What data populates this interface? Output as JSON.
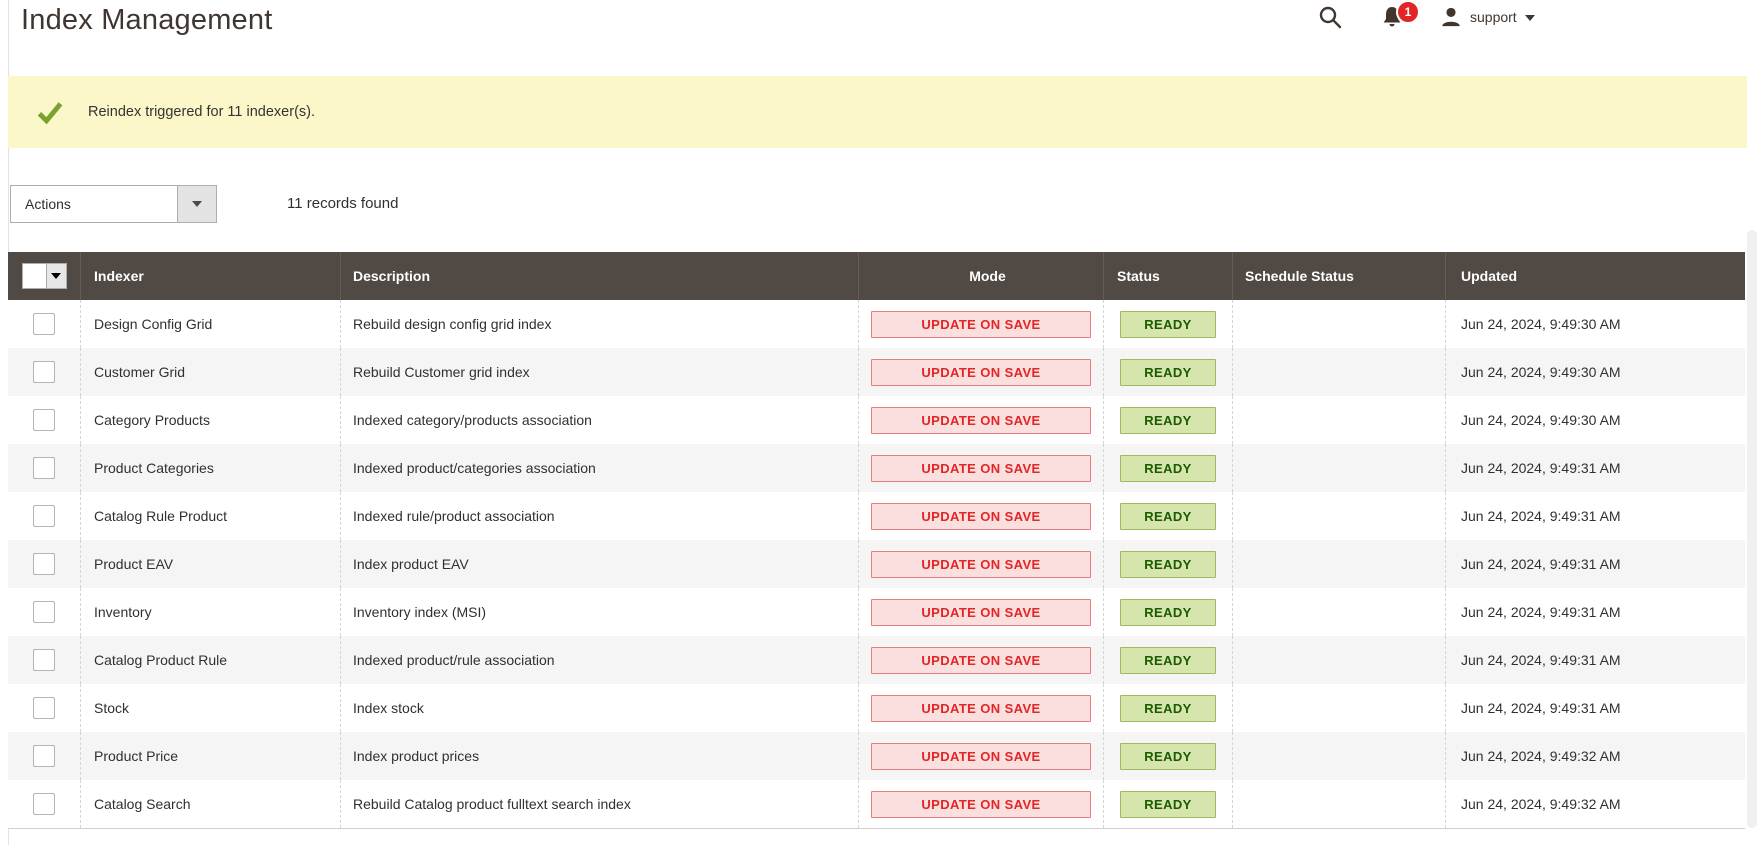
{
  "page": {
    "title": "Index Management"
  },
  "header": {
    "search_icon": "search-icon",
    "notification_icon": "bell-icon",
    "notification_count": "1",
    "user_icon": "person-icon",
    "username": "support"
  },
  "message": {
    "icon": "success-check-icon",
    "text": "Reindex triggered for 11 indexer(s)."
  },
  "toolbar": {
    "actions_label": "Actions",
    "records_text": "11 records found"
  },
  "table": {
    "columns": [
      "Indexer",
      "Description",
      "Mode",
      "Status",
      "Schedule Status",
      "Updated"
    ],
    "rows": [
      {
        "indexer": "Design Config Grid",
        "description": "Rebuild design config grid index",
        "mode": "UPDATE ON SAVE",
        "status": "READY",
        "schedule_status": "",
        "updated": "Jun 24, 2024, 9:49:30 AM"
      },
      {
        "indexer": "Customer Grid",
        "description": "Rebuild Customer grid index",
        "mode": "UPDATE ON SAVE",
        "status": "READY",
        "schedule_status": "",
        "updated": "Jun 24, 2024, 9:49:30 AM"
      },
      {
        "indexer": "Category Products",
        "description": "Indexed category/products association",
        "mode": "UPDATE ON SAVE",
        "status": "READY",
        "schedule_status": "",
        "updated": "Jun 24, 2024, 9:49:30 AM"
      },
      {
        "indexer": "Product Categories",
        "description": "Indexed product/categories association",
        "mode": "UPDATE ON SAVE",
        "status": "READY",
        "schedule_status": "",
        "updated": "Jun 24, 2024, 9:49:31 AM"
      },
      {
        "indexer": "Catalog Rule Product",
        "description": "Indexed rule/product association",
        "mode": "UPDATE ON SAVE",
        "status": "READY",
        "schedule_status": "",
        "updated": "Jun 24, 2024, 9:49:31 AM"
      },
      {
        "indexer": "Product EAV",
        "description": "Index product EAV",
        "mode": "UPDATE ON SAVE",
        "status": "READY",
        "schedule_status": "",
        "updated": "Jun 24, 2024, 9:49:31 AM"
      },
      {
        "indexer": "Inventory",
        "description": "Inventory index (MSI)",
        "mode": "UPDATE ON SAVE",
        "status": "READY",
        "schedule_status": "",
        "updated": "Jun 24, 2024, 9:49:31 AM"
      },
      {
        "indexer": "Catalog Product Rule",
        "description": "Indexed product/rule association",
        "mode": "UPDATE ON SAVE",
        "status": "READY",
        "schedule_status": "",
        "updated": "Jun 24, 2024, 9:49:31 AM"
      },
      {
        "indexer": "Stock",
        "description": "Index stock",
        "mode": "UPDATE ON SAVE",
        "status": "READY",
        "schedule_status": "",
        "updated": "Jun 24, 2024, 9:49:31 AM"
      },
      {
        "indexer": "Product Price",
        "description": "Index product prices",
        "mode": "UPDATE ON SAVE",
        "status": "READY",
        "schedule_status": "",
        "updated": "Jun 24, 2024, 9:49:32 AM"
      },
      {
        "indexer": "Catalog Search",
        "description": "Rebuild Catalog product fulltext search index",
        "mode": "UPDATE ON SAVE",
        "status": "READY",
        "schedule_status": "",
        "updated": "Jun 24, 2024, 9:49:32 AM"
      }
    ]
  },
  "colors": {
    "grid_header_bg": "#514943",
    "success_banner_bg": "#fbf7c9",
    "success_check": "#79a22e",
    "notification_badge": "#e22626",
    "mode_badge_bg": "#fbdfdf",
    "mode_badge_border": "#e57e7e",
    "mode_badge_text": "#e22626",
    "ready_badge_bg": "#d6e5ab",
    "ready_badge_border": "#9fb862",
    "ready_badge_text": "#1a5b03",
    "row_alt_bg": "#f5f5f5"
  }
}
